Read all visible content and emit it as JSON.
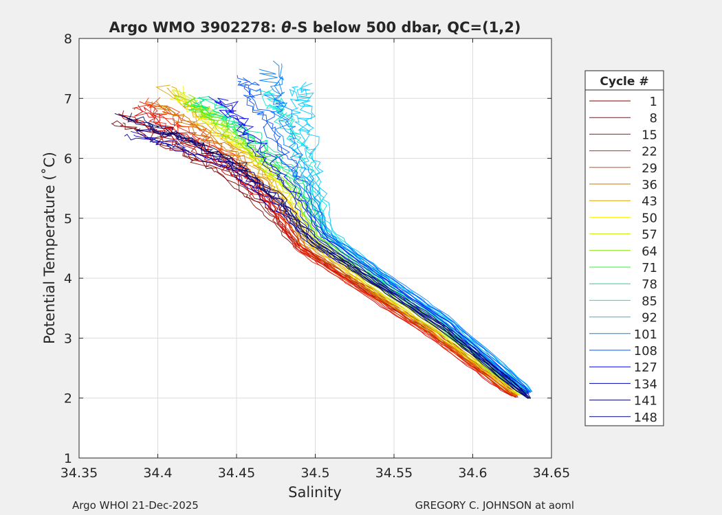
{
  "chart_data": {
    "type": "line",
    "title_prefix": "Argo WMO 3902278: ",
    "title_theta": "θ",
    "title_suffix": "-S below 500 dbar,  QC=(1,2)",
    "xlabel": "Salinity",
    "ylabel": "Potential Temperature (˚C)",
    "xlim": [
      34.35,
      34.65
    ],
    "ylim": [
      1,
      8
    ],
    "grid": true,
    "x_ticks": [
      34.35,
      34.4,
      34.45,
      34.5,
      34.55,
      34.6,
      34.65
    ],
    "x_tick_labels": [
      "34.35",
      "34.4",
      "34.45",
      "34.5",
      "34.55",
      "34.6",
      "34.65"
    ],
    "y_ticks": [
      1,
      2,
      3,
      4,
      5,
      6,
      7,
      8
    ],
    "y_tick_labels": [
      "1",
      "2",
      "3",
      "4",
      "5",
      "6",
      "7",
      "8"
    ],
    "legend_title": "Cycle #",
    "legend_position": "outside-right",
    "series": [
      {
        "name": "1",
        "color": "#800000",
        "salinity": [
          34.372,
          34.405,
          34.44,
          34.466,
          34.49,
          34.528,
          34.575,
          34.628
        ],
        "theta": [
          6.6,
          6.25,
          5.75,
          5.2,
          4.5,
          3.9,
          3.1,
          2.01
        ]
      },
      {
        "name": "8",
        "color": "#aa0000",
        "salinity": [
          34.378,
          34.41,
          34.445,
          34.469,
          34.49,
          34.527,
          34.574,
          34.626
        ],
        "theta": [
          6.75,
          6.3,
          5.8,
          5.25,
          4.55,
          3.9,
          3.1,
          2.03
        ]
      },
      {
        "name": "15",
        "color": "#d40000",
        "salinity": [
          34.385,
          34.415,
          34.45,
          34.472,
          34.49,
          34.526,
          34.573,
          34.625
        ],
        "theta": [
          6.85,
          6.35,
          5.8,
          5.2,
          4.5,
          3.85,
          3.05,
          2.04
        ]
      },
      {
        "name": "22",
        "color": "#e61c00",
        "salinity": [
          34.39,
          34.42,
          34.452,
          34.474,
          34.491,
          34.527,
          34.573,
          34.626
        ],
        "theta": [
          6.9,
          6.4,
          5.85,
          5.2,
          4.45,
          3.85,
          3.05,
          2.03
        ]
      },
      {
        "name": "29",
        "color": "#f04000",
        "salinity": [
          34.395,
          34.425,
          34.455,
          34.476,
          34.492,
          34.528,
          34.574,
          34.627
        ],
        "theta": [
          6.95,
          6.45,
          5.85,
          5.25,
          4.5,
          3.87,
          3.07,
          2.03
        ]
      },
      {
        "name": "36",
        "color": "#c87800",
        "salinity": [
          34.4,
          34.428,
          34.457,
          34.478,
          34.494,
          34.529,
          34.575,
          34.628
        ],
        "theta": [
          6.9,
          6.45,
          5.9,
          5.3,
          4.55,
          3.9,
          3.1,
          2.04
        ]
      },
      {
        "name": "43",
        "color": "#e0a000",
        "salinity": [
          34.405,
          34.43,
          34.458,
          34.48,
          34.496,
          34.53,
          34.576,
          34.629
        ],
        "theta": [
          7.2,
          6.6,
          6.0,
          5.35,
          4.6,
          3.92,
          3.1,
          2.05
        ]
      },
      {
        "name": "50",
        "color": "#ffee00",
        "salinity": [
          34.41,
          34.432,
          34.46,
          34.482,
          34.497,
          34.531,
          34.577,
          34.63
        ],
        "theta": [
          7.15,
          6.6,
          6.0,
          5.4,
          4.6,
          3.95,
          3.12,
          2.05
        ]
      },
      {
        "name": "57",
        "color": "#c8f000",
        "salinity": [
          34.415,
          34.436,
          34.462,
          34.484,
          34.499,
          34.532,
          34.578,
          34.631
        ],
        "theta": [
          7.1,
          6.6,
          6.05,
          5.45,
          4.65,
          3.97,
          3.14,
          2.06
        ]
      },
      {
        "name": "64",
        "color": "#80e000",
        "salinity": [
          34.418,
          34.44,
          34.465,
          34.487,
          34.501,
          34.534,
          34.58,
          34.632
        ],
        "theta": [
          7.0,
          6.55,
          6.0,
          5.45,
          4.7,
          4.0,
          3.17,
          2.07
        ]
      },
      {
        "name": "71",
        "color": "#30f040",
        "salinity": [
          34.42,
          34.445,
          34.468,
          34.49,
          34.503,
          34.536,
          34.581,
          34.633
        ],
        "theta": [
          6.95,
          6.55,
          6.05,
          5.5,
          4.72,
          4.02,
          3.2,
          2.08
        ]
      },
      {
        "name": "78",
        "color": "#00e890",
        "salinity": [
          34.425,
          34.45,
          34.472,
          34.493,
          34.505,
          34.538,
          34.582,
          34.634
        ],
        "theta": [
          7.0,
          6.6,
          6.1,
          5.55,
          4.75,
          4.05,
          3.22,
          2.09
        ]
      },
      {
        "name": "85",
        "color": "#00e8d0",
        "salinity": [
          34.47,
          34.478,
          34.485,
          34.496,
          34.507,
          34.539,
          34.584,
          34.635
        ],
        "theta": [
          7.1,
          6.8,
          6.4,
          5.8,
          4.8,
          4.08,
          3.25,
          2.1
        ]
      },
      {
        "name": "92",
        "color": "#00c8ff",
        "salinity": [
          34.49,
          34.492,
          34.495,
          34.5,
          34.508,
          34.54,
          34.585,
          34.637
        ],
        "theta": [
          7.2,
          6.9,
          6.4,
          5.7,
          4.8,
          4.1,
          3.28,
          2.11
        ]
      },
      {
        "name": "101",
        "color": "#0080ff",
        "salinity": [
          34.47,
          34.476,
          34.485,
          34.497,
          34.508,
          34.541,
          34.586,
          34.637
        ],
        "theta": [
          7.55,
          7.0,
          6.3,
          5.5,
          4.7,
          4.12,
          3.3,
          2.1
        ]
      },
      {
        "name": "108",
        "color": "#0050ff",
        "salinity": [
          34.455,
          34.463,
          34.475,
          34.49,
          34.506,
          34.54,
          34.585,
          34.636
        ],
        "theta": [
          7.35,
          6.9,
          6.3,
          5.6,
          4.75,
          4.1,
          3.27,
          2.09
        ]
      },
      {
        "name": "127",
        "color": "#0000f0",
        "salinity": [
          34.44,
          34.452,
          34.468,
          34.486,
          34.503,
          34.537,
          34.583,
          34.635
        ],
        "theta": [
          7.0,
          6.6,
          6.05,
          5.4,
          4.7,
          4.07,
          3.24,
          2.07
        ]
      },
      {
        "name": "134",
        "color": "#0000b0",
        "salinity": [
          34.385,
          34.41,
          34.445,
          34.475,
          34.5,
          34.534,
          34.58,
          34.634
        ],
        "theta": [
          6.4,
          6.2,
          5.85,
          5.2,
          4.55,
          4.0,
          3.18,
          2.04
        ]
      },
      {
        "name": "141",
        "color": "#000060",
        "salinity": [
          34.38,
          34.415,
          34.448,
          34.477,
          34.498,
          34.533,
          34.58,
          34.636
        ],
        "theta": [
          6.7,
          6.35,
          5.95,
          5.3,
          4.6,
          4.0,
          3.18,
          1.99
        ]
      },
      {
        "name": "148",
        "color": "#000080",
        "salinity": [
          34.39,
          34.42,
          34.45,
          34.478,
          34.5,
          34.534,
          34.581,
          34.636
        ],
        "theta": [
          6.5,
          6.3,
          5.85,
          5.3,
          4.62,
          4.02,
          3.2,
          2.0
        ]
      }
    ]
  },
  "footer": {
    "left": "Argo WHOI 21-Dec-2025",
    "right": "GREGORY C. JOHNSON at aoml"
  }
}
